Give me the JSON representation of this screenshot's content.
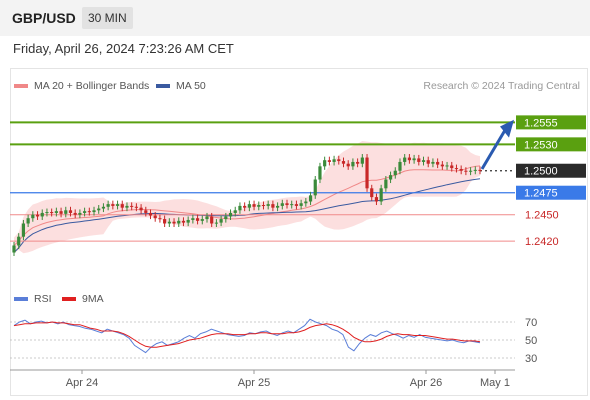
{
  "header": {
    "pair": "GBP/USD",
    "timeframe": "30 MIN"
  },
  "datetime": "Friday, April 26, 2024 7:23:26 AM CET",
  "credit": "Research © 2024 Trading Central",
  "legend": {
    "ma20": "MA 20 + Bollinger Bands",
    "ma50": "MA 50"
  },
  "rsi_legend": {
    "rsi": "RSI",
    "ma9": "9MA"
  },
  "colors": {
    "up": "#3a8a3a",
    "down": "#c82828",
    "ma20": "#f08888",
    "ma50": "#3a5aa0",
    "resistance": "#5aa010",
    "support": "#3a7ae8",
    "support_weak": "#f08a8a",
    "rsi": "#5a7ed8",
    "rsi_ma": "#e02020",
    "arrow": "#2a5ab0"
  },
  "chart_data": {
    "type": "line",
    "title": "",
    "ylim": [
      1.2378,
      1.2585
    ],
    "x_ticks": [
      "Apr 24",
      "Apr 25",
      "Apr 26",
      "May 1"
    ],
    "last_price": 1.25,
    "levels": [
      {
        "label": "1.2555",
        "value": 1.2555,
        "kind": "resistance"
      },
      {
        "label": "1.2530",
        "value": 1.253,
        "kind": "resistance"
      },
      {
        "label": "1.2500",
        "value": 1.25,
        "kind": "price"
      },
      {
        "label": "1.2475",
        "value": 1.2475,
        "kind": "support"
      },
      {
        "label": "1.2450",
        "value": 1.245,
        "kind": "support_weak"
      },
      {
        "label": "1.2420",
        "value": 1.242,
        "kind": "support_weak"
      }
    ],
    "price_close": [
      1.2415,
      1.2425,
      1.244,
      1.2446,
      1.245,
      1.2448,
      1.2452,
      1.2453,
      1.2452,
      1.2454,
      1.2451,
      1.2455,
      1.2452,
      1.245,
      1.2452,
      1.2454,
      1.2453,
      1.2455,
      1.2457,
      1.2459,
      1.2462,
      1.246,
      1.2462,
      1.2458,
      1.246,
      1.2459,
      1.2458,
      1.2455,
      1.2452,
      1.2449,
      1.2446,
      1.2445,
      1.244,
      1.2442,
      1.244,
      1.2443,
      1.2441,
      1.2444,
      1.2446,
      1.2443,
      1.2445,
      1.2448,
      1.244,
      1.2441,
      1.2445,
      1.2448,
      1.2452,
      1.2455,
      1.246,
      1.2458,
      1.2462,
      1.2459,
      1.2461,
      1.246,
      1.2462,
      1.2458,
      1.246,
      1.2463,
      1.2461,
      1.2462,
      1.246,
      1.2463,
      1.2465,
      1.2472,
      1.249,
      1.2505,
      1.2512,
      1.251,
      1.2513,
      1.2511,
      1.2508,
      1.2505,
      1.251,
      1.2508,
      1.2515,
      1.248,
      1.247,
      1.2465,
      1.248,
      1.249,
      1.2495,
      1.25,
      1.251,
      1.2515,
      1.2512,
      1.2514,
      1.251,
      1.2512,
      1.2508,
      1.251,
      1.2507,
      1.2505,
      1.2506,
      1.2503,
      1.2502,
      1.25,
      1.2499,
      1.25,
      1.2501,
      1.25
    ],
    "rsi": {
      "ylim": [
        20,
        80
      ],
      "ticks": [
        70,
        50,
        30
      ],
      "values": [
        66,
        70,
        72,
        68,
        70,
        71,
        69,
        70,
        68,
        70,
        67,
        66,
        65,
        63,
        62,
        60,
        58,
        62,
        60,
        58,
        56,
        52,
        44,
        40,
        36,
        42,
        46,
        48,
        44,
        46,
        48,
        52,
        55,
        52,
        57,
        59,
        62,
        60,
        58,
        56,
        55,
        54,
        55,
        58,
        57,
        59,
        60,
        57,
        55,
        58,
        60,
        58,
        62,
        66,
        73,
        70,
        68,
        66,
        62,
        60,
        56,
        42,
        38,
        46,
        52,
        56,
        54,
        58,
        60,
        57,
        55,
        52,
        55,
        53,
        56,
        53,
        52,
        51,
        50,
        49,
        50,
        48,
        47,
        49,
        48,
        47
      ],
      "ma9": [
        66,
        67,
        68,
        68,
        69,
        69,
        69,
        70,
        69,
        69,
        68,
        67,
        67,
        65,
        63,
        62,
        60,
        60,
        60,
        59,
        57,
        54,
        50,
        46,
        43,
        42,
        42,
        43,
        44,
        45,
        46,
        48,
        50,
        51,
        52,
        54,
        56,
        57,
        57,
        57,
        56,
        56,
        56,
        57,
        57,
        58,
        58,
        57,
        57,
        57,
        58,
        58,
        59,
        61,
        64,
        66,
        67,
        68,
        67,
        65,
        62,
        58,
        53,
        50,
        48,
        48,
        49,
        51,
        54,
        56,
        57,
        56,
        56,
        55,
        55,
        55,
        54,
        53,
        52,
        51,
        51,
        50,
        49,
        49,
        49,
        48
      ]
    }
  }
}
